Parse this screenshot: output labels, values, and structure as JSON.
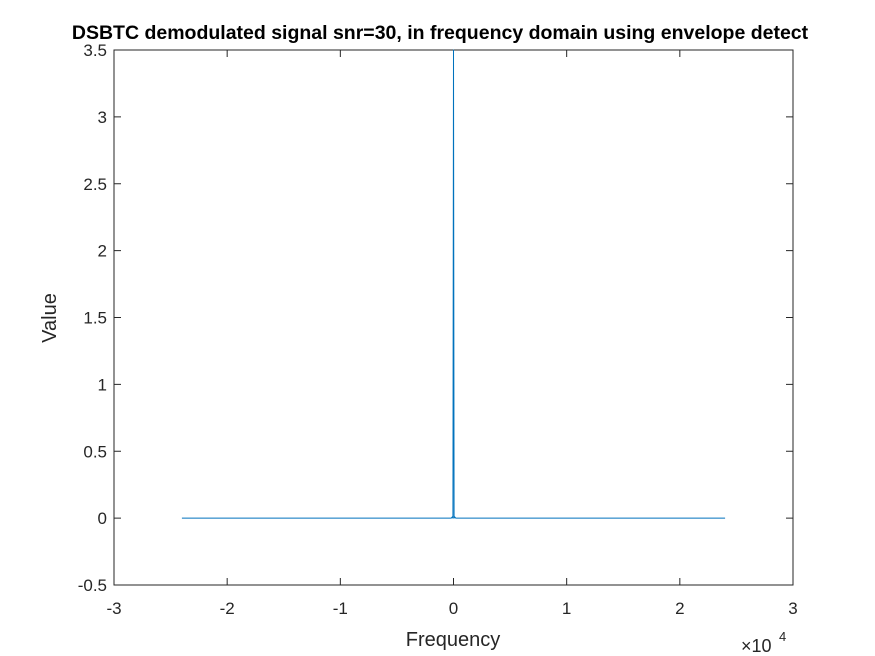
{
  "chart_data": {
    "type": "line",
    "title": "DSBTC demodulated signal snr=30, in frequency domain using envelope detect",
    "xlabel": "Frequency",
    "ylabel": "Value",
    "xlim": [
      -3,
      3
    ],
    "ylim": [
      -0.5,
      3.5
    ],
    "x_ticks": [
      "-3",
      "-2",
      "-1",
      "0",
      "1",
      "2",
      "3"
    ],
    "y_ticks": [
      "-0.5",
      "0",
      "0.5",
      "1",
      "1.5",
      "2",
      "2.5",
      "3",
      "3.5"
    ],
    "x_exponent_prefix": "×10",
    "x_exponent_power": "4",
    "grid": false,
    "series": [
      {
        "color": "#0072bd",
        "x": [
          -2.4,
          -0.02,
          -0.01,
          -0.005,
          0,
          0.005,
          0.01,
          0.02,
          2.4
        ],
        "y": [
          0,
          0,
          0.01,
          0,
          3.5,
          0,
          0.01,
          0,
          0
        ]
      }
    ]
  }
}
